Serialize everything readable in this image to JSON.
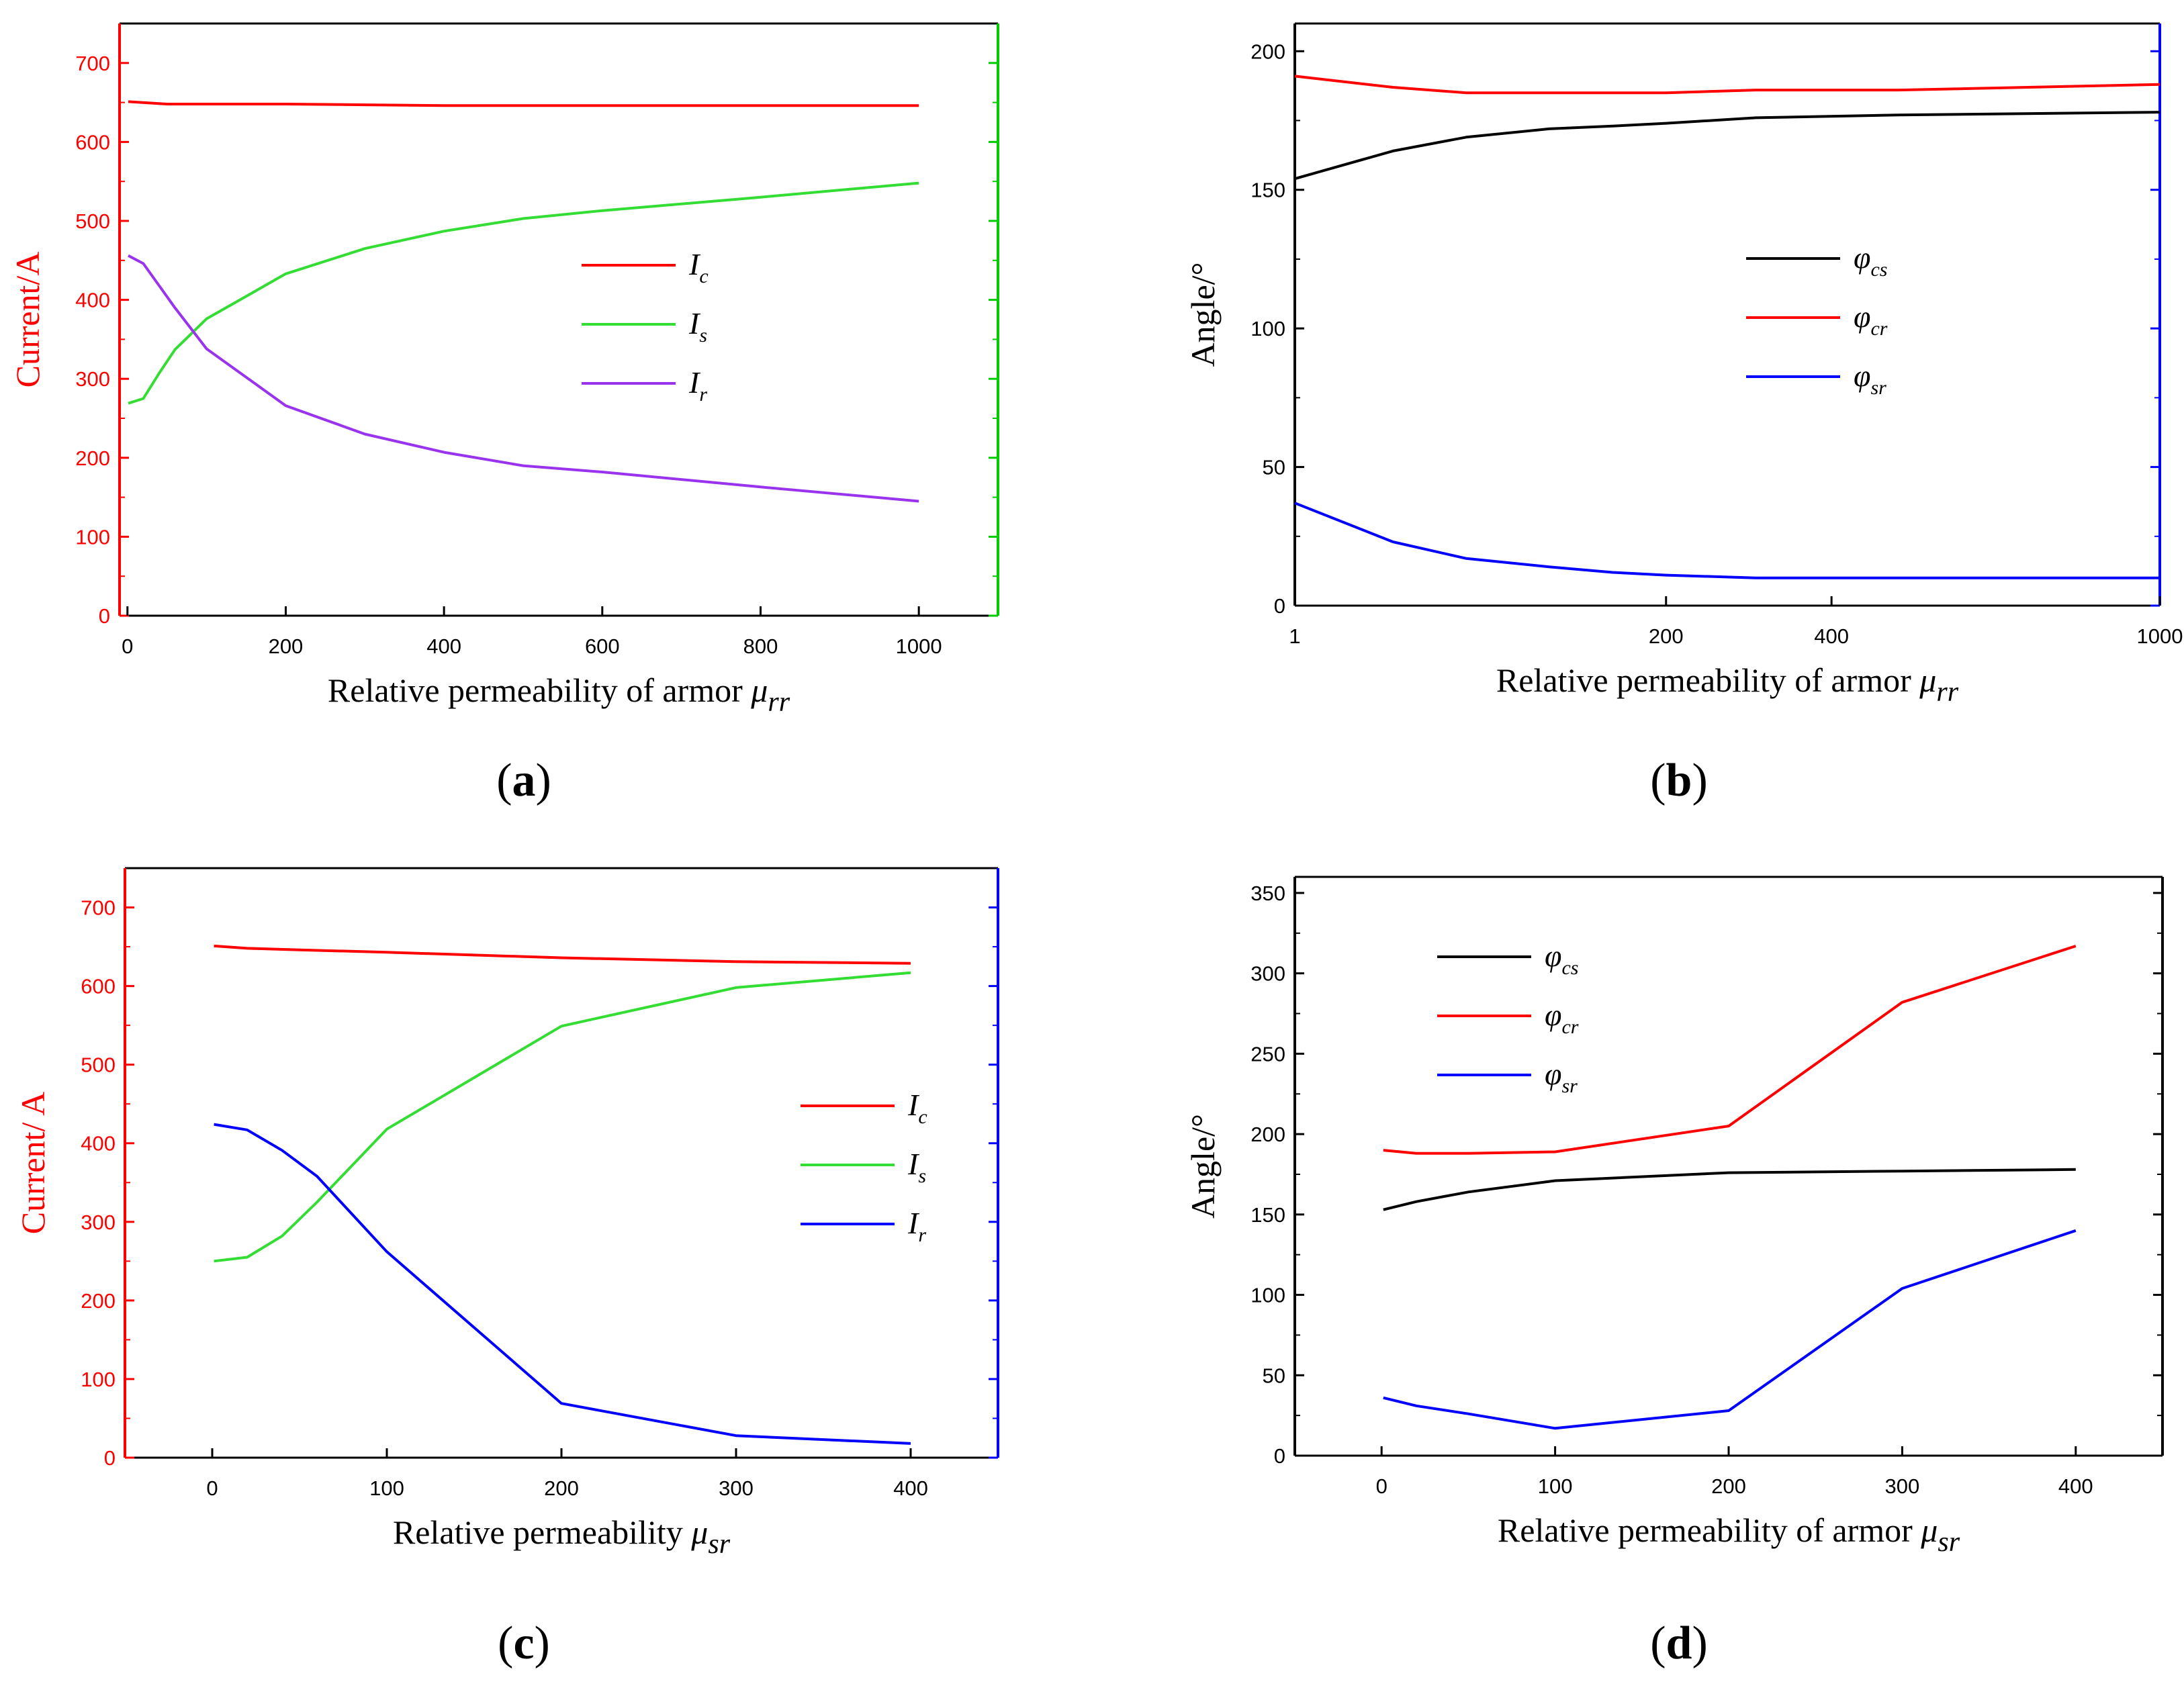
{
  "figure": {
    "panel_labels": [
      "(a)",
      "(b)",
      "(c)",
      "(d)"
    ]
  },
  "chart_data": [
    {
      "id": "a",
      "type": "line",
      "panel_label": "(a)",
      "xlabel": "Relative permeability of armor",
      "xlabel_symbol": "μ",
      "xlabel_sub": "rr",
      "ylabel": "Current/A",
      "ylabel_color": "#ff0000",
      "left_axis_color": "#ff0000",
      "right_axis_color": "#00cc00",
      "xlim": [
        -10,
        1100
      ],
      "ylim": [
        0,
        750
      ],
      "xticks": [
        0,
        200,
        400,
        600,
        800,
        1000
      ],
      "yticks": [
        0,
        100,
        200,
        300,
        400,
        500,
        600,
        700
      ],
      "xscale": "linear",
      "legend": {
        "position": "center-right"
      },
      "series": [
        {
          "name": "I",
          "sub": "c",
          "color": "#ff0000",
          "x": [
            1,
            50,
            100,
            200,
            300,
            400,
            500,
            600,
            800,
            1000
          ],
          "y": [
            651,
            648,
            648,
            648,
            647,
            646,
            646,
            646,
            646,
            646
          ]
        },
        {
          "name": "I",
          "sub": "s",
          "color": "#33dd33",
          "x": [
            1,
            20,
            40,
            60,
            100,
            200,
            300,
            400,
            500,
            600,
            800,
            1000
          ],
          "y": [
            269,
            275,
            307,
            337,
            376,
            433,
            465,
            487,
            503,
            513,
            530,
            548
          ]
        },
        {
          "name": "I",
          "sub": "r",
          "color": "#9933ee",
          "x": [
            1,
            20,
            40,
            60,
            100,
            200,
            300,
            400,
            500,
            600,
            800,
            1000
          ],
          "y": [
            456,
            446,
            418,
            390,
            338,
            266,
            230,
            207,
            190,
            182,
            163,
            145
          ]
        }
      ]
    },
    {
      "id": "b",
      "type": "line",
      "panel_label": "(b)",
      "xlabel": "Relative permeability of armor",
      "xlabel_symbol": "μ",
      "xlabel_sub": "rr",
      "ylabel": "Angle/°",
      "ylabel_color": "#000000",
      "left_axis_color": "#000000",
      "right_axis_color": "#0000ff",
      "xlim": [
        1,
        1000
      ],
      "ylim": [
        0,
        210
      ],
      "xticks": [
        1,
        200,
        400,
        1000
      ],
      "yticks": [
        0,
        50,
        100,
        150,
        200
      ],
      "xscale": "sqrt",
      "legend": {
        "position": "center-right"
      },
      "series": [
        {
          "name": "φ",
          "sub": "cs",
          "color": "#000000",
          "x": [
            1,
            20,
            50,
            100,
            150,
            200,
            300,
            500,
            1000
          ],
          "y": [
            154,
            164,
            169,
            172,
            173,
            174,
            176,
            177,
            178
          ]
        },
        {
          "name": "φ",
          "sub": "cr",
          "color": "#ff0000",
          "x": [
            1,
            20,
            50,
            100,
            150,
            200,
            300,
            500,
            1000
          ],
          "y": [
            191,
            187,
            185,
            185,
            185,
            185,
            186,
            186,
            188
          ]
        },
        {
          "name": "φ",
          "sub": "sr",
          "color": "#0000ff",
          "x": [
            1,
            20,
            50,
            100,
            150,
            200,
            300,
            500,
            1000
          ],
          "y": [
            37,
            23,
            17,
            14,
            12,
            11,
            10,
            10,
            10
          ]
        }
      ]
    },
    {
      "id": "c",
      "type": "line",
      "panel_label": "(c)",
      "xlabel": "Relative permeability",
      "xlabel_symbol": "μ",
      "xlabel_sub": "sr",
      "ylabel": "Current/ A",
      "ylabel_color": "#ff0000",
      "left_axis_color": "#ff0000",
      "right_axis_color": "#0000ff",
      "xlim": [
        -50,
        450
      ],
      "ylim": [
        0,
        750
      ],
      "xticks": [
        0,
        100,
        200,
        300,
        400
      ],
      "yticks": [
        0,
        100,
        200,
        300,
        400,
        500,
        600,
        700
      ],
      "xscale": "linear",
      "legend": {
        "position": "center-right"
      },
      "series": [
        {
          "name": "I",
          "sub": "c",
          "color": "#ff0000",
          "x": [
            1,
            20,
            50,
            100,
            200,
            300,
            400
          ],
          "y": [
            651,
            648,
            646,
            643,
            636,
            631,
            629
          ]
        },
        {
          "name": "I",
          "sub": "s",
          "color": "#33dd33",
          "x": [
            1,
            20,
            40,
            60,
            100,
            200,
            300,
            400
          ],
          "y": [
            250,
            255,
            282,
            325,
            418,
            549,
            598,
            617
          ]
        },
        {
          "name": "I",
          "sub": "r",
          "color": "#0000ff",
          "x": [
            1,
            20,
            40,
            60,
            100,
            200,
            300,
            400
          ],
          "y": [
            424,
            417,
            391,
            358,
            262,
            69,
            28,
            18
          ]
        }
      ]
    },
    {
      "id": "d",
      "type": "line",
      "panel_label": "(d)",
      "xlabel": "Relative permeability of armor",
      "xlabel_symbol": "μ",
      "xlabel_sub": "sr",
      "ylabel": "Angle/°",
      "ylabel_color": "#000000",
      "left_axis_color": "#000000",
      "right_axis_color": "#000000",
      "xlim": [
        -50,
        450
      ],
      "ylim": [
        0,
        360
      ],
      "xticks": [
        0,
        100,
        200,
        300,
        400
      ],
      "yticks": [
        0,
        50,
        100,
        150,
        200,
        250,
        300,
        350
      ],
      "xscale": "linear",
      "legend": {
        "position": "top-left"
      },
      "series": [
        {
          "name": "φ",
          "sub": "cs",
          "color": "#000000",
          "x": [
            1,
            20,
            50,
            100,
            200,
            300,
            400
          ],
          "y": [
            153,
            158,
            164,
            171,
            176,
            177,
            178
          ]
        },
        {
          "name": "φ",
          "sub": "cr",
          "color": "#ff0000",
          "x": [
            1,
            20,
            50,
            100,
            200,
            300,
            400
          ],
          "y": [
            190,
            188,
            188,
            189,
            205,
            282,
            317
          ]
        },
        {
          "name": "φ",
          "sub": "sr",
          "color": "#0000ff",
          "x": [
            1,
            20,
            50,
            100,
            200,
            300,
            400
          ],
          "y": [
            36,
            31,
            26,
            17,
            28,
            104,
            140
          ]
        }
      ]
    }
  ]
}
